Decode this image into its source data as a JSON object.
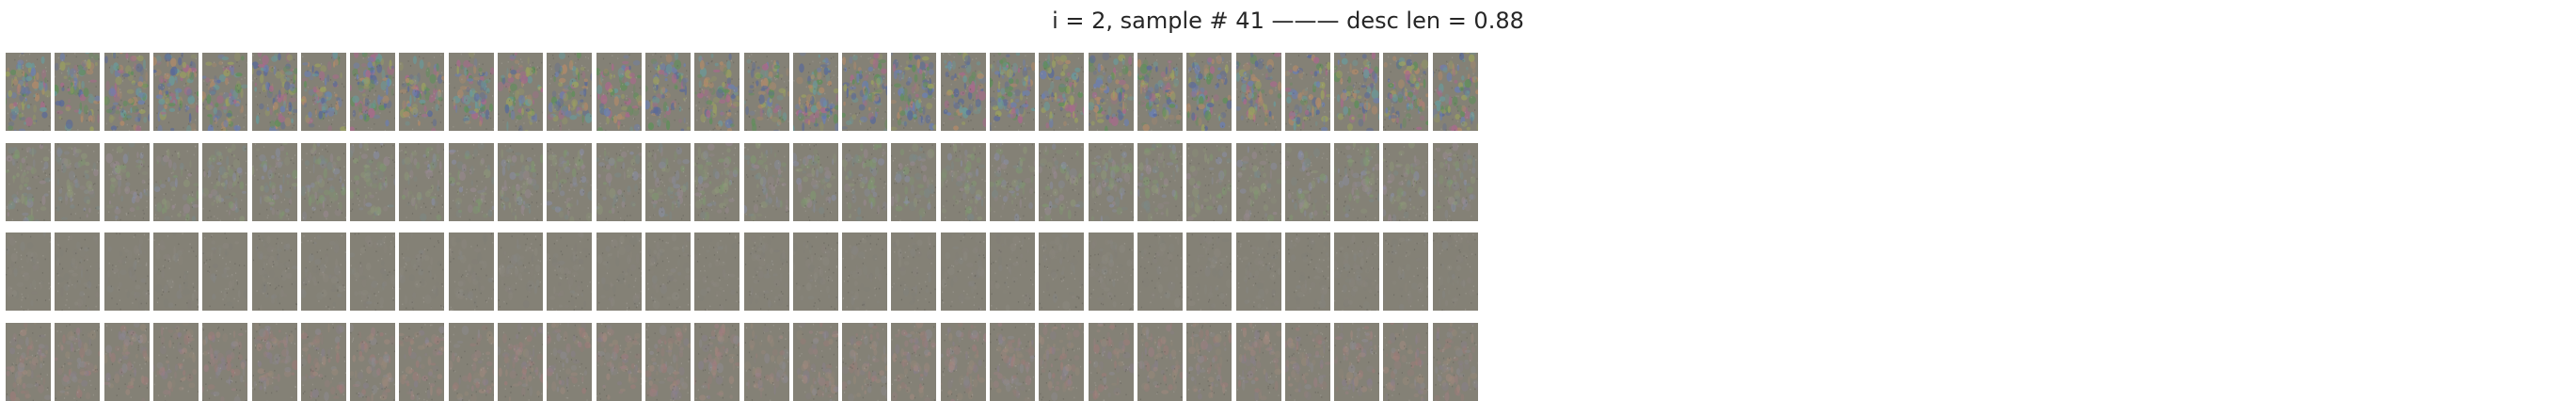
{
  "figure": {
    "title": "i = 2, sample # 41 ——— desc len = 0.88"
  },
  "grid": {
    "rows": 4,
    "columns": 30,
    "tile_base_color": "#848176",
    "background_color": "#ffffff",
    "row_noise_description": [
      "strong color noise with green, blue and magenta speckles",
      "moderate noise, slightly greenish center",
      "low-contrast gray noise",
      "gray noise with faint warm/pinkish blotches"
    ]
  }
}
